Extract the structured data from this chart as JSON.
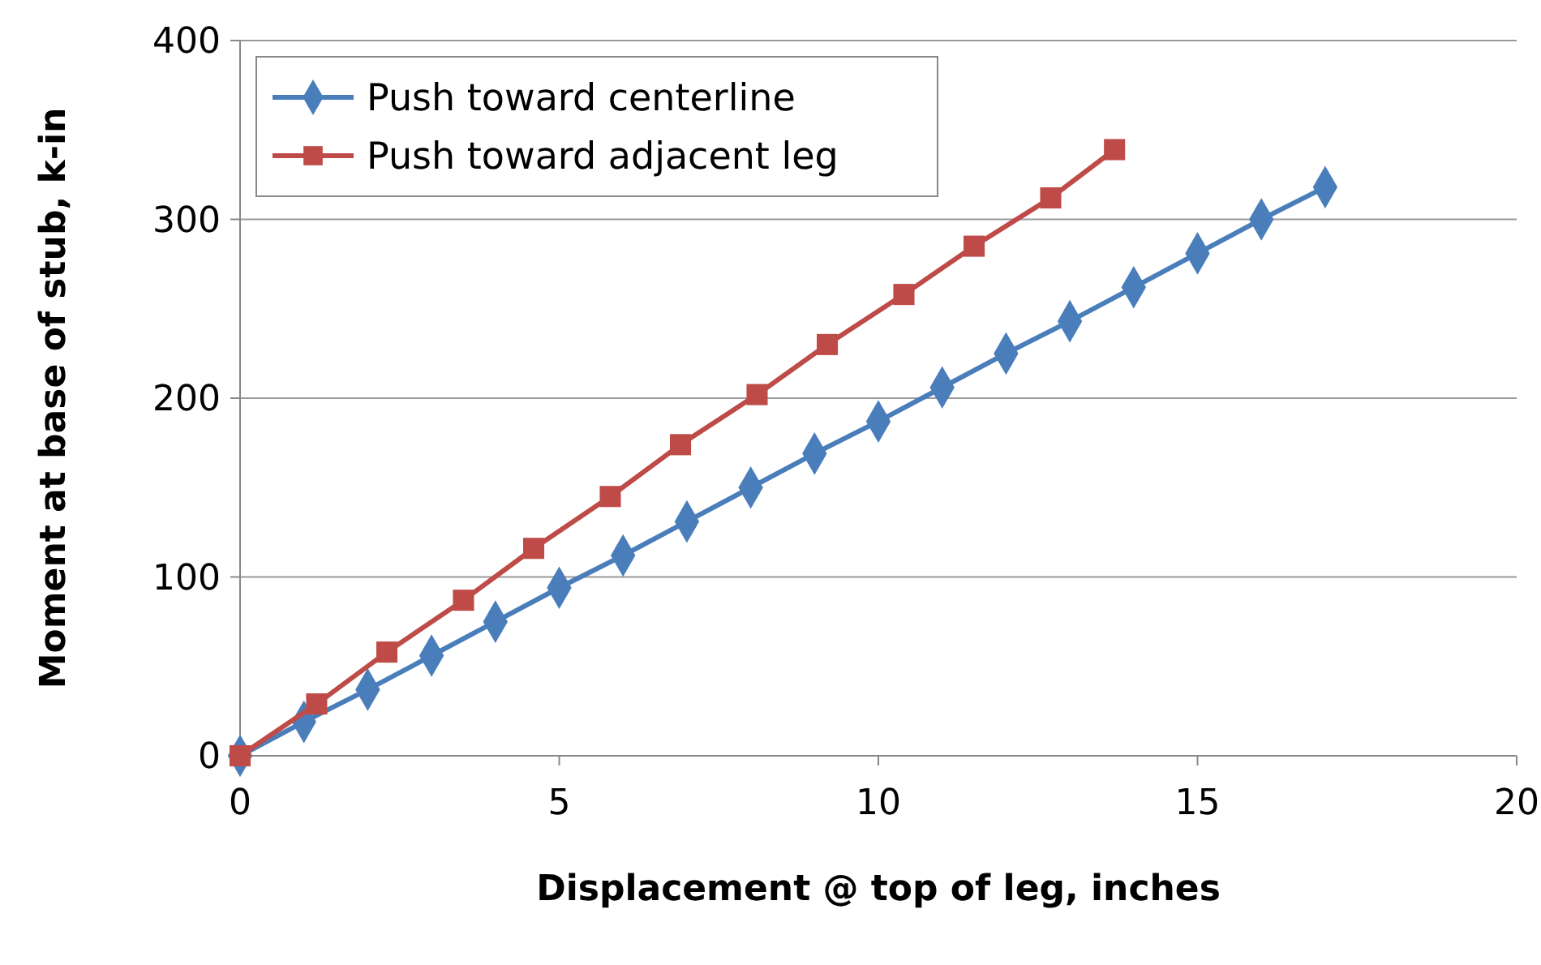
{
  "chart_data": {
    "type": "line",
    "xlabel": "Displacement @ top of leg, inches",
    "ylabel": "Moment at base of stub, k-in",
    "xlim": [
      0,
      20
    ],
    "xticks": [
      0,
      5,
      10,
      15,
      20
    ],
    "ylim": [
      0,
      400
    ],
    "yticks": [
      0,
      100,
      200,
      300,
      400
    ],
    "grid": "y",
    "legend": "top left",
    "line_style": "solid",
    "series": [
      {
        "name": "Push toward centerline",
        "color": "#4a7ebb",
        "marker": "diamond",
        "x": [
          0,
          1,
          2,
          3,
          4,
          5,
          6,
          7,
          8,
          9,
          10,
          11,
          12,
          13,
          14,
          15,
          16,
          17
        ],
        "values": [
          0,
          19,
          37,
          56,
          75,
          94,
          112,
          131,
          150,
          169,
          187,
          206,
          225,
          243,
          262,
          281,
          300,
          318
        ]
      },
      {
        "name": "Push toward adjacent leg",
        "color": "#be4b48",
        "marker": "square",
        "x": [
          0,
          1.2,
          2.3,
          3.5,
          4.6,
          5.8,
          6.9,
          8.1,
          9.2,
          10.4,
          11.5,
          12.7,
          13.7
        ],
        "values": [
          0,
          29,
          58,
          87,
          116,
          145,
          174,
          202,
          230,
          258,
          285,
          312,
          339
        ]
      }
    ]
  }
}
